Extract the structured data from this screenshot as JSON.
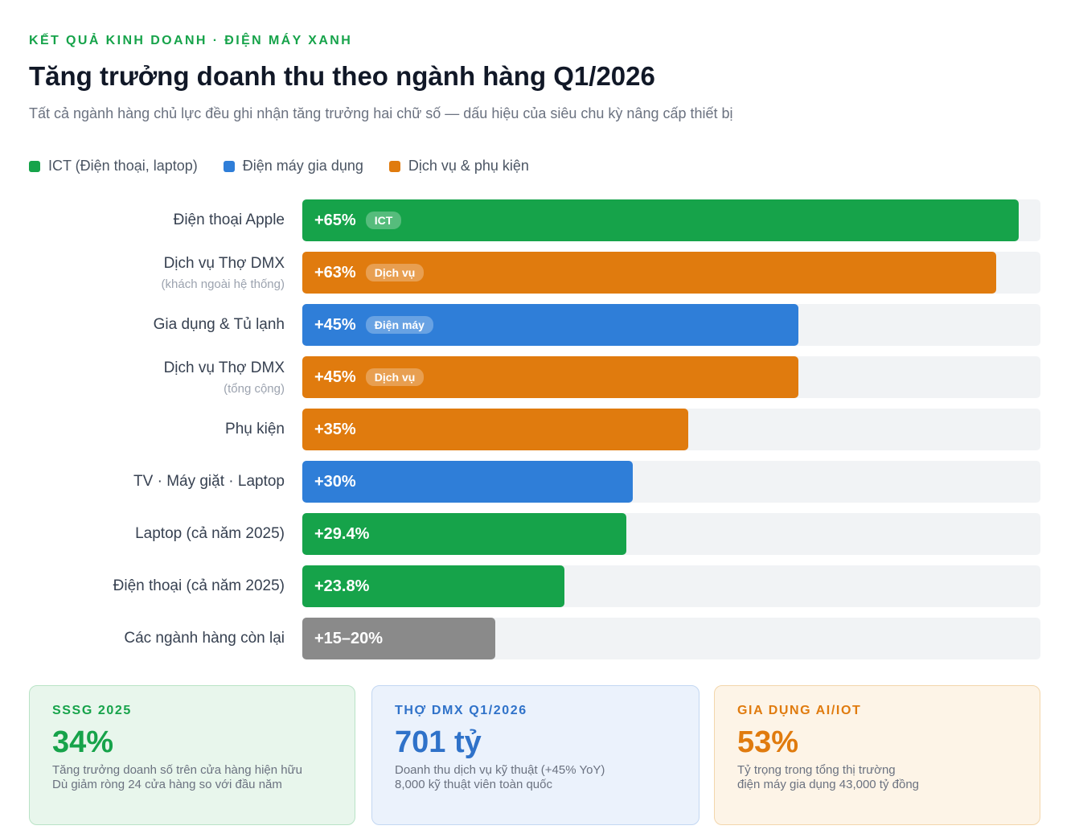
{
  "header": {
    "eyebrow": "KẾT QUẢ KINH DOANH · ĐIỆN MÁY XANH",
    "title": "Tăng trưởng doanh thu theo ngành hàng Q1/2026",
    "subtitle": "Tất cả ngành hàng chủ lực đều ghi nhận tăng trưởng hai chữ số — dấu hiệu của siêu chu kỳ nâng cấp thiết bị"
  },
  "colors": {
    "ict": "#16a34a",
    "dienmay": "#2f7ed8",
    "dichvu": "#e07b0e",
    "other": "#8a8a8a"
  },
  "legend": [
    {
      "label": "ICT (Điện thoại, laptop)",
      "color": "#16a34a"
    },
    {
      "label": "Điện máy gia dụng",
      "color": "#2f7ed8"
    },
    {
      "label": "Dịch vụ & phụ kiện",
      "color": "#e07b0e"
    }
  ],
  "chart_data": {
    "type": "bar",
    "orientation": "horizontal",
    "xlim": [
      0,
      67
    ],
    "grid": false,
    "legend_position": "top-left",
    "categories": [
      {
        "label": "Điện thoại Apple",
        "sublabel": "",
        "value": 65,
        "value_label": "+65%",
        "tag": "ICT",
        "group": "ict"
      },
      {
        "label": "Dịch vụ Thợ DMX",
        "sublabel": "(khách ngoài hệ thống)",
        "value": 63,
        "value_label": "+63%",
        "tag": "Dịch vụ",
        "group": "dichvu"
      },
      {
        "label": "Gia dụng & Tủ lạnh",
        "sublabel": "",
        "value": 45,
        "value_label": "+45%",
        "tag": "Điện máy",
        "group": "dienmay"
      },
      {
        "label": "Dịch vụ Thợ DMX",
        "sublabel": "(tổng cộng)",
        "value": 45,
        "value_label": "+45%",
        "tag": "Dịch vụ",
        "group": "dichvu"
      },
      {
        "label": "Phụ kiện",
        "sublabel": "",
        "value": 35,
        "value_label": "+35%",
        "tag": "",
        "group": "dichvu"
      },
      {
        "label": "TV · Máy giặt · Laptop",
        "sublabel": "",
        "value": 30,
        "value_label": "+30%",
        "tag": "",
        "group": "dienmay"
      },
      {
        "label": "Laptop (cả năm 2025)",
        "sublabel": "",
        "value": 29.4,
        "value_label": "+29.4%",
        "tag": "",
        "group": "ict"
      },
      {
        "label": "Điện thoại (cả năm 2025)",
        "sublabel": "",
        "value": 23.8,
        "value_label": "+23.8%",
        "tag": "",
        "group": "ict"
      },
      {
        "label": "Các ngành hàng còn lại",
        "sublabel": "",
        "value": 17.5,
        "value_label": "+15–20%",
        "tag": "",
        "group": "other"
      }
    ]
  },
  "cards": [
    {
      "label": "SSSG 2025",
      "value": "34%",
      "lines": [
        "Tăng trưởng doanh số trên cửa hàng hiện hữu",
        "Dù giảm ròng 24 cửa hàng so với đầu năm"
      ],
      "accent": "#16a34a",
      "bg": "#e8f6ec",
      "border": "#b9e3c6"
    },
    {
      "label": "THỢ DMX Q1/2026",
      "value": "701 tỷ",
      "lines": [
        "Doanh thu dịch vụ kỹ thuật (+45% YoY)",
        "8,000 kỹ thuật viên toàn quốc"
      ],
      "accent": "#2f72c9",
      "bg": "#ebf2fc",
      "border": "#c3d7f2"
    },
    {
      "label": "GIA DỤNG AI/IOT",
      "value": "53%",
      "lines": [
        "Tỷ trọng trong tổng thị trường",
        "điện máy gia dụng 43,000 tỷ đồng"
      ],
      "accent": "#e07b0e",
      "bg": "#fdf4e7",
      "border": "#f3d6ab"
    }
  ]
}
